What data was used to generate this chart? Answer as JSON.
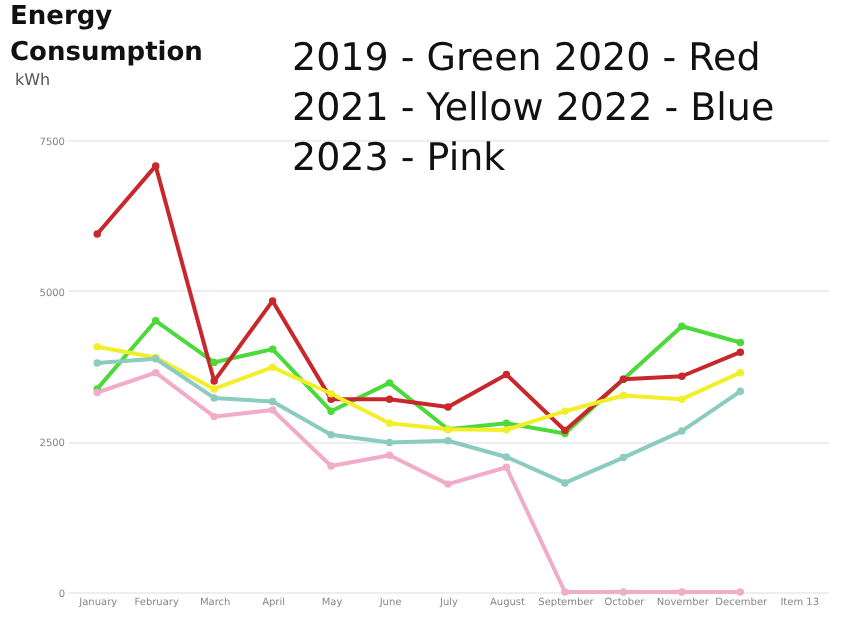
{
  "chart_data": {
    "type": "line",
    "title": "Energy Consumption",
    "ylabel": "kWh",
    "categories": [
      "January",
      "February",
      "March",
      "April",
      "May",
      "June",
      "July",
      "August",
      "September",
      "October",
      "November",
      "December",
      "Item 13"
    ],
    "series": [
      {
        "color": "#4cd93a",
        "values": [
          3370,
          4500,
          3810,
          4030,
          3000,
          3470,
          2700,
          2800,
          2630,
          3530,
          4410,
          4140,
          null
        ]
      },
      {
        "color": "#c8282c",
        "values": [
          5940,
          7070,
          3500,
          4830,
          3200,
          3200,
          3070,
          3610,
          2680,
          3530,
          3580,
          3980,
          null
        ]
      },
      {
        "color": "#f2ee2a",
        "values": [
          4070,
          3890,
          3370,
          3730,
          3290,
          2800,
          2700,
          2690,
          3000,
          3260,
          3200,
          3640,
          null
        ]
      },
      {
        "color": "#8ccbbf",
        "values": [
          3800,
          3870,
          3220,
          3160,
          2610,
          2480,
          2510,
          2240,
          1810,
          2230,
          2670,
          3330,
          null
        ]
      },
      {
        "color": "#f0acc8",
        "values": [
          3310,
          3640,
          2910,
          3020,
          2090,
          2270,
          1790,
          2070,
          0,
          0,
          0,
          0,
          null
        ]
      }
    ],
    "ylim": [
      0,
      7500
    ],
    "yticks": [
      0,
      2500,
      5000,
      7500
    ],
    "grid": "y",
    "marker": "circle",
    "line_style": "solid",
    "annotations": [
      "2019 - Green  2020 - Red",
      "2021 - Yellow 2022 - Blue",
      "2023 - Pink"
    ]
  }
}
